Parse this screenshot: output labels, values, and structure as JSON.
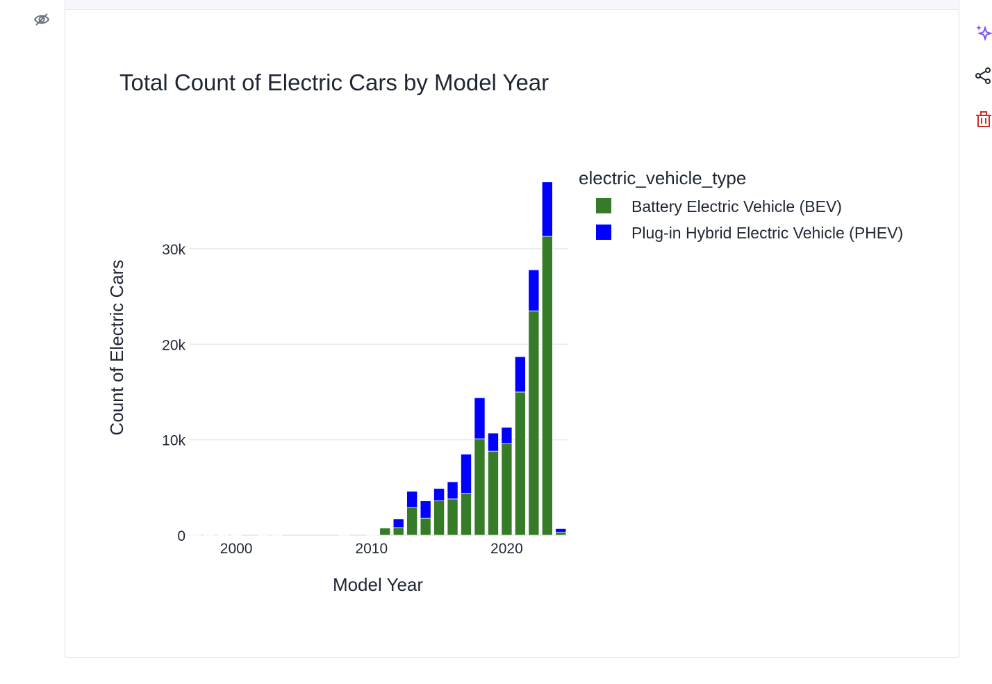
{
  "colors": {
    "bev": "#367c28",
    "phev": "#0000ff",
    "grid": "#e8eaef",
    "text": "#1f2633",
    "ai_icon": "#7b4ff2",
    "share_icon": "#1f2633",
    "delete_icon": "#c9302c"
  },
  "icons": {
    "hide": "eye-off-icon",
    "ai": "sparkles-icon",
    "share": "share-icon",
    "delete": "trash-icon"
  },
  "chart_data": {
    "type": "bar",
    "stacked": true,
    "title": "Total Count of Electric Cars by Model Year",
    "xlabel": "Model Year",
    "ylabel": "Count of Electric Cars",
    "x_ticks": [
      "2000",
      "2010",
      "2020"
    ],
    "y_ticks": [
      "0",
      "10k",
      "20k",
      "30k"
    ],
    "xlim": [
      1996.5,
      2024.5
    ],
    "ylim": [
      0,
      38000
    ],
    "grid": true,
    "legend": {
      "title": "electric_vehicle_type",
      "position": "top-right, outside plot"
    },
    "x": [
      1997,
      1998,
      1999,
      2000,
      2002,
      2003,
      2008,
      2010,
      2011,
      2012,
      2013,
      2014,
      2015,
      2016,
      2017,
      2018,
      2019,
      2020,
      2021,
      2022,
      2023,
      2024
    ],
    "series": [
      {
        "name": "Battery Electric Vehicle (BEV)",
        "values": [
          1,
          1,
          5,
          7,
          2,
          1,
          20,
          25,
          750,
          800,
          2900,
          1800,
          3600,
          3800,
          4400,
          10100,
          8800,
          9600,
          15000,
          23500,
          31300,
          300
        ]
      },
      {
        "name": "Plug-in Hybrid Electric Vehicle (PHEV)",
        "values": [
          0,
          0,
          0,
          0,
          0,
          0,
          0,
          0,
          0,
          900,
          1700,
          1800,
          1300,
          1800,
          4100,
          4300,
          1900,
          1700,
          3700,
          4300,
          5700,
          400
        ]
      }
    ]
  }
}
